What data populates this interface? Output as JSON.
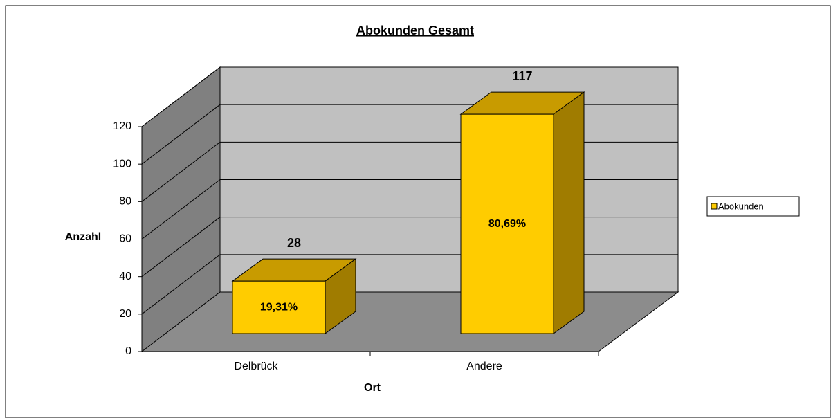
{
  "chart_data": {
    "type": "bar3d",
    "title": "Abokunden Gesamt",
    "x_label": "Ort",
    "y_label": "Anzahl",
    "categories": [
      "Delbrück",
      "Andere"
    ],
    "series": [
      {
        "name": "Abokunden",
        "color": "#ffcc00",
        "values": [
          28,
          117
        ],
        "shares": [
          19.31,
          80.69
        ],
        "share_labels": [
          "19,31%",
          "80,69%"
        ]
      }
    ],
    "ylim": [
      0,
      120
    ],
    "yticks": [
      0,
      20,
      40,
      60,
      80,
      100,
      120
    ],
    "grid": true,
    "legend": "right"
  }
}
